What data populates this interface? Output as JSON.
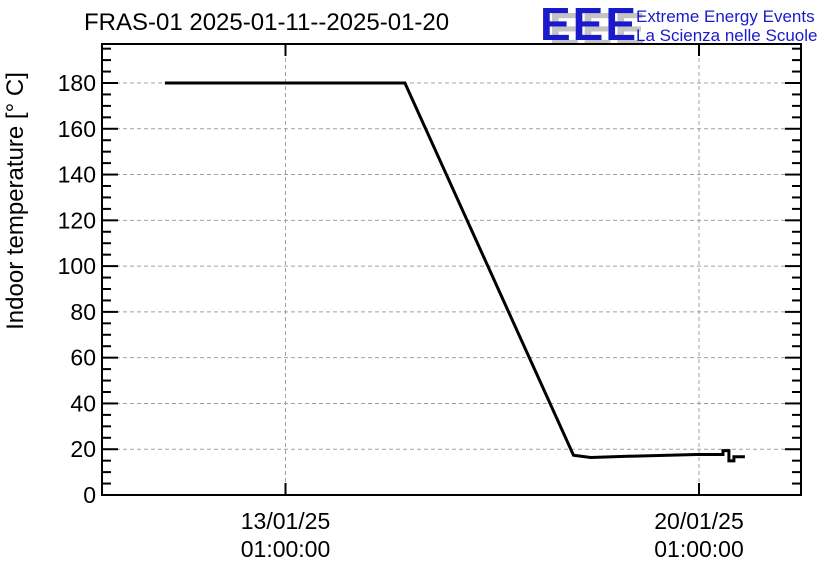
{
  "header": {
    "title": "FRAS-01 2025-01-11--2025-01-20",
    "logo": {
      "text": "EEE",
      "line1": "Extreme Energy Events",
      "line2": "La Scienza nelle Scuole",
      "color": "#1a1acc"
    }
  },
  "chart_data": {
    "type": "line",
    "title": "FRAS-01 2025-01-11--2025-01-20",
    "xlabel": "",
    "ylabel": "Indoor temperature [° C]",
    "ylim": [
      0,
      197
    ],
    "yticks": [
      0,
      20,
      40,
      60,
      80,
      100,
      120,
      140,
      160,
      180
    ],
    "y_minor_step": 5,
    "grid": true,
    "legend_position": "none",
    "x_type": "datetime",
    "xticks": [
      {
        "datetime": "2025-01-13T01:00:00",
        "label_line1": "13/01/25",
        "label_line2": "01:00:00"
      },
      {
        "datetime": "2025-01-20T01:00:00",
        "label_line1": "20/01/25",
        "label_line2": "01:00:00"
      }
    ],
    "series": [
      {
        "name": "Indoor temperature",
        "color": "#000000",
        "points": [
          {
            "t": "2025-01-11T00:00:00",
            "v": 180
          },
          {
            "t": "2025-01-15T01:30:00",
            "v": 180
          },
          {
            "t": "2025-01-17T22:00:00",
            "v": 17.4
          },
          {
            "t": "2025-01-18T05:00:00",
            "v": 16.4
          },
          {
            "t": "2025-01-18T20:00:00",
            "v": 16.9
          },
          {
            "t": "2025-01-20T00:00:00",
            "v": 17.7
          },
          {
            "t": "2025-01-20T10:45:00",
            "v": 17.7
          },
          {
            "t": "2025-01-20T10:45:00",
            "v": 19.4
          },
          {
            "t": "2025-01-20T13:10:00",
            "v": 19.4
          },
          {
            "t": "2025-01-20T13:10:00",
            "v": 14.9
          },
          {
            "t": "2025-01-20T15:10:00",
            "v": 14.9
          },
          {
            "t": "2025-01-20T15:10:00",
            "v": 16.7
          },
          {
            "t": "2025-01-20T19:40:00",
            "v": 16.7
          }
        ]
      }
    ],
    "colors": {
      "line": "#000000",
      "grid": "#a0a0a0",
      "axis": "#000000"
    }
  }
}
